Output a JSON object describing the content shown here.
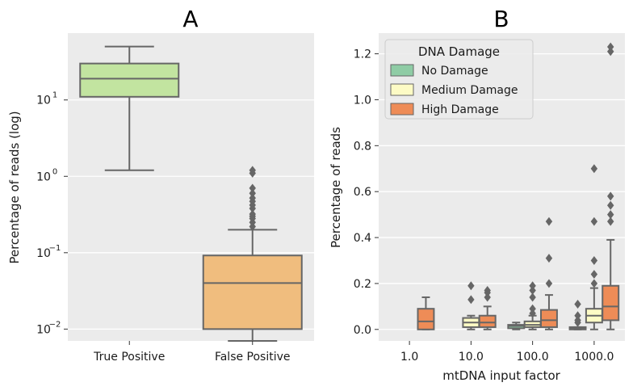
{
  "chart_data": [
    {
      "panel_label": "A",
      "type": "box",
      "ylabel": "Percentage of reads (log)",
      "yscale": "log",
      "ylim": [
        0.007,
        75
      ],
      "yticks": [
        {
          "value": 0.01,
          "label": "10",
          "exp": "−2"
        },
        {
          "value": 0.1,
          "label": "10",
          "exp": "−1"
        },
        {
          "value": 1,
          "label": "10",
          "exp": "0"
        },
        {
          "value": 10,
          "label": "10",
          "exp": "1"
        }
      ],
      "categories": [
        "True Positive",
        "False Positive"
      ],
      "boxes": [
        {
          "category": "True Positive",
          "color": "#c2e4a0",
          "whislo": 1.2,
          "q1": 11,
          "med": 19,
          "q3": 30,
          "whishi": 50,
          "fliers": []
        },
        {
          "category": "False Positive",
          "color": "#f0bd7e",
          "whislo": 0.007,
          "q1": 0.01,
          "med": 0.04,
          "q3": 0.092,
          "whishi": 0.2,
          "fliers": [
            0.22,
            0.25,
            0.28,
            0.3,
            0.32,
            0.38,
            0.42,
            0.47,
            0.52,
            0.6,
            0.7,
            1.1,
            1.2
          ]
        }
      ],
      "grid": true
    },
    {
      "panel_label": "B",
      "type": "box",
      "xlabel": "mtDNA input factor",
      "ylabel": "Percentage of reads",
      "ylim": [
        -0.05,
        1.29
      ],
      "yticks": [
        0.0,
        0.2,
        0.4,
        0.6,
        0.8,
        1.0,
        1.2
      ],
      "ytick_labels": [
        "0.0",
        "0.2",
        "0.4",
        "0.6",
        "0.8",
        "1.0",
        "1.2"
      ],
      "categories": [
        "1.0",
        "10.0",
        "100.0",
        "1000.0"
      ],
      "legend": {
        "title": "DNA Damage",
        "position": "top-left",
        "entries": [
          {
            "name": "No Damage",
            "color": "#8fcca5"
          },
          {
            "name": "Medium Damage",
            "color": "#fdfbc5"
          },
          {
            "name": "High Damage",
            "color": "#ee8c57"
          }
        ]
      },
      "series": [
        {
          "name": "No Damage",
          "color": "#8fcca5",
          "boxes": [
            null,
            null,
            {
              "category": "100.0",
              "whislo": 0.0,
              "q1": 0.005,
              "med": 0.015,
              "q3": 0.02,
              "whishi": 0.03,
              "fliers": []
            },
            {
              "category": "1000.0",
              "whislo": 0.0,
              "q1": 0.0,
              "med": 0.005,
              "q3": 0.01,
              "whishi": 0.01,
              "fliers": [
                0.03,
                0.04,
                0.06,
                0.11
              ]
            }
          ]
        },
        {
          "name": "Medium Damage",
          "color": "#fdfbc5",
          "boxes": [
            null,
            {
              "category": "10.0",
              "whislo": 0.0,
              "q1": 0.01,
              "med": 0.03,
              "q3": 0.05,
              "whishi": 0.06,
              "fliers": [
                0.13,
                0.19
              ]
            },
            {
              "category": "100.0",
              "whislo": 0.0,
              "q1": 0.01,
              "med": 0.02,
              "q3": 0.035,
              "whishi": 0.06,
              "fliers": [
                0.07,
                0.09,
                0.14,
                0.17,
                0.19
              ]
            },
            {
              "category": "1000.0",
              "whislo": 0.0,
              "q1": 0.03,
              "med": 0.06,
              "q3": 0.09,
              "whishi": 0.18,
              "fliers": [
                0.2,
                0.24,
                0.3,
                0.47,
                0.7
              ]
            }
          ]
        },
        {
          "name": "High Damage",
          "color": "#ee8c57",
          "boxes": [
            {
              "category": "1.0",
              "whislo": 0.0,
              "q1": 0.0,
              "med": 0.035,
              "q3": 0.09,
              "whishi": 0.14,
              "fliers": []
            },
            {
              "category": "10.0",
              "whislo": 0.0,
              "q1": 0.01,
              "med": 0.03,
              "q3": 0.06,
              "whishi": 0.1,
              "fliers": [
                0.14,
                0.16,
                0.17
              ]
            },
            {
              "category": "100.0",
              "whislo": 0.0,
              "q1": 0.01,
              "med": 0.04,
              "q3": 0.085,
              "whishi": 0.15,
              "fliers": [
                0.2,
                0.31,
                0.47
              ]
            },
            {
              "category": "1000.0",
              "whislo": 0.0,
              "q1": 0.04,
              "med": 0.1,
              "q3": 0.19,
              "whishi": 0.39,
              "fliers": [
                0.47,
                0.5,
                0.54,
                0.58,
                1.21,
                1.23
              ]
            }
          ]
        }
      ],
      "grid": true
    }
  ]
}
